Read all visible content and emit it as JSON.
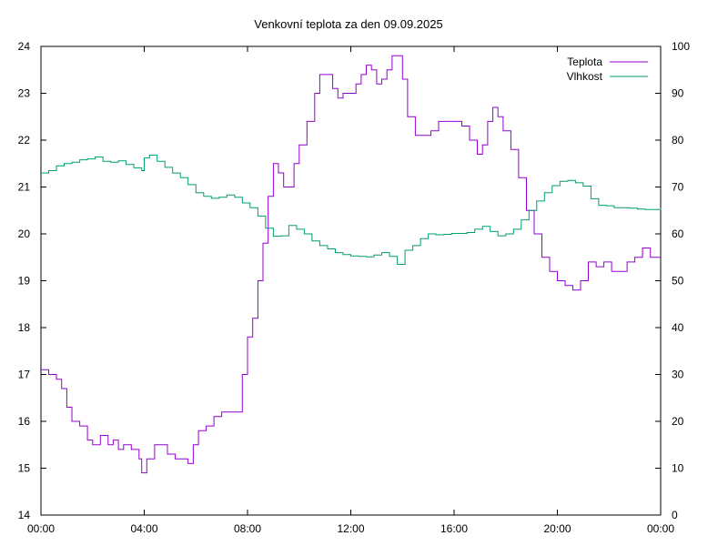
{
  "chart_data": {
    "type": "line",
    "title": "Venkovní teplota za den 09.09.2025",
    "xlabel": "",
    "ylabel": "",
    "y2label": "",
    "x_ticks": [
      "00:00",
      "04:00",
      "08:00",
      "12:00",
      "16:00",
      "20:00",
      "00:00"
    ],
    "xlim": [
      0,
      24
    ],
    "ylim": [
      14,
      24
    ],
    "y_ticks": [
      14,
      15,
      16,
      17,
      18,
      19,
      20,
      21,
      22,
      23,
      24
    ],
    "y2lim": [
      0,
      100
    ],
    "y2_ticks": [
      0,
      10,
      20,
      30,
      40,
      50,
      60,
      70,
      80,
      90,
      100
    ],
    "grid": false,
    "legend_position": "top-right",
    "series": [
      {
        "name": "Teplota",
        "axis": "left",
        "color": "#9400d3",
        "points": [
          [
            0,
            17.1
          ],
          [
            0.3,
            17.0
          ],
          [
            0.6,
            16.9
          ],
          [
            0.8,
            16.7
          ],
          [
            1.0,
            16.3
          ],
          [
            1.2,
            16.0
          ],
          [
            1.5,
            15.9
          ],
          [
            1.8,
            15.6
          ],
          [
            2.0,
            15.5
          ],
          [
            2.3,
            15.7
          ],
          [
            2.6,
            15.5
          ],
          [
            2.8,
            15.6
          ],
          [
            3.0,
            15.4
          ],
          [
            3.2,
            15.5
          ],
          [
            3.5,
            15.4
          ],
          [
            3.8,
            15.2
          ],
          [
            3.9,
            14.9
          ],
          [
            4.1,
            15.2
          ],
          [
            4.4,
            15.5
          ],
          [
            4.6,
            15.5
          ],
          [
            4.9,
            15.3
          ],
          [
            5.2,
            15.2
          ],
          [
            5.5,
            15.2
          ],
          [
            5.7,
            15.1
          ],
          [
            5.9,
            15.5
          ],
          [
            6.1,
            15.8
          ],
          [
            6.4,
            15.9
          ],
          [
            6.7,
            16.1
          ],
          [
            7.0,
            16.2
          ],
          [
            7.3,
            16.2
          ],
          [
            7.6,
            16.2
          ],
          [
            7.8,
            17.0
          ],
          [
            8.0,
            17.8
          ],
          [
            8.2,
            18.2
          ],
          [
            8.4,
            19.0
          ],
          [
            8.6,
            19.8
          ],
          [
            8.8,
            20.8
          ],
          [
            9.0,
            21.5
          ],
          [
            9.2,
            21.3
          ],
          [
            9.4,
            21.0
          ],
          [
            9.6,
            21.0
          ],
          [
            9.8,
            21.5
          ],
          [
            10.0,
            21.9
          ],
          [
            10.3,
            22.4
          ],
          [
            10.6,
            23.0
          ],
          [
            10.8,
            23.4
          ],
          [
            11.1,
            23.4
          ],
          [
            11.3,
            23.1
          ],
          [
            11.5,
            22.9
          ],
          [
            11.7,
            23.0
          ],
          [
            12.0,
            23.0
          ],
          [
            12.2,
            23.2
          ],
          [
            12.4,
            23.4
          ],
          [
            12.6,
            23.6
          ],
          [
            12.8,
            23.5
          ],
          [
            13.0,
            23.2
          ],
          [
            13.2,
            23.3
          ],
          [
            13.4,
            23.5
          ],
          [
            13.6,
            23.8
          ],
          [
            13.8,
            23.8
          ],
          [
            14.0,
            23.3
          ],
          [
            14.2,
            22.5
          ],
          [
            14.5,
            22.1
          ],
          [
            14.8,
            22.1
          ],
          [
            15.1,
            22.2
          ],
          [
            15.4,
            22.4
          ],
          [
            15.7,
            22.4
          ],
          [
            16.0,
            22.4
          ],
          [
            16.3,
            22.3
          ],
          [
            16.6,
            22.0
          ],
          [
            16.9,
            21.7
          ],
          [
            17.1,
            21.9
          ],
          [
            17.3,
            22.4
          ],
          [
            17.5,
            22.7
          ],
          [
            17.7,
            22.5
          ],
          [
            17.9,
            22.2
          ],
          [
            18.2,
            21.8
          ],
          [
            18.5,
            21.2
          ],
          [
            18.8,
            20.5
          ],
          [
            19.1,
            20.0
          ],
          [
            19.4,
            19.5
          ],
          [
            19.7,
            19.2
          ],
          [
            20.0,
            19.0
          ],
          [
            20.3,
            18.9
          ],
          [
            20.6,
            18.8
          ],
          [
            20.9,
            19.0
          ],
          [
            21.2,
            19.4
          ],
          [
            21.5,
            19.3
          ],
          [
            21.8,
            19.4
          ],
          [
            22.1,
            19.2
          ],
          [
            22.4,
            19.2
          ],
          [
            22.7,
            19.4
          ],
          [
            23.0,
            19.5
          ],
          [
            23.3,
            19.7
          ],
          [
            23.6,
            19.5
          ],
          [
            24.0,
            19.5
          ]
        ]
      },
      {
        "name": "Vlhkost",
        "axis": "right",
        "color": "#009e73",
        "points": [
          [
            0,
            73
          ],
          [
            0.3,
            73.5
          ],
          [
            0.6,
            74.5
          ],
          [
            0.9,
            75
          ],
          [
            1.2,
            75.3
          ],
          [
            1.5,
            75.8
          ],
          [
            1.8,
            76
          ],
          [
            2.1,
            76.4
          ],
          [
            2.4,
            75.5
          ],
          [
            2.7,
            75.3
          ],
          [
            3.0,
            75.6
          ],
          [
            3.3,
            74.8
          ],
          [
            3.6,
            74.1
          ],
          [
            3.9,
            73.5
          ],
          [
            4.0,
            76.2
          ],
          [
            4.2,
            76.8
          ],
          [
            4.5,
            75.5
          ],
          [
            4.8,
            74.2
          ],
          [
            5.1,
            73
          ],
          [
            5.4,
            72
          ],
          [
            5.7,
            70.5
          ],
          [
            6.0,
            68.8
          ],
          [
            6.3,
            68
          ],
          [
            6.6,
            67.6
          ],
          [
            6.9,
            67.8
          ],
          [
            7.2,
            68.3
          ],
          [
            7.5,
            67.8
          ],
          [
            7.8,
            66.6
          ],
          [
            8.1,
            65.6
          ],
          [
            8.4,
            63.8
          ],
          [
            8.7,
            61.2
          ],
          [
            9.0,
            59.5
          ],
          [
            9.3,
            59.6
          ],
          [
            9.6,
            61.8
          ],
          [
            9.9,
            61
          ],
          [
            10.2,
            60
          ],
          [
            10.5,
            58.5
          ],
          [
            10.8,
            57.5
          ],
          [
            11.1,
            56.8
          ],
          [
            11.4,
            56
          ],
          [
            11.7,
            55.6
          ],
          [
            12.0,
            55.3
          ],
          [
            12.3,
            55.2
          ],
          [
            12.6,
            55.1
          ],
          [
            12.9,
            55.5
          ],
          [
            13.2,
            56
          ],
          [
            13.5,
            55.2
          ],
          [
            13.8,
            53.5
          ],
          [
            14.1,
            56.5
          ],
          [
            14.4,
            57.5
          ],
          [
            14.7,
            59
          ],
          [
            15.0,
            60
          ],
          [
            15.3,
            59.8
          ],
          [
            15.6,
            59.9
          ],
          [
            15.9,
            60.1
          ],
          [
            16.2,
            60.1
          ],
          [
            16.5,
            60.3
          ],
          [
            16.8,
            61
          ],
          [
            17.1,
            61.6
          ],
          [
            17.4,
            60.5
          ],
          [
            17.7,
            59.6
          ],
          [
            18.0,
            60
          ],
          [
            18.3,
            61
          ],
          [
            18.6,
            63
          ],
          [
            18.9,
            65
          ],
          [
            19.2,
            67
          ],
          [
            19.5,
            68.8
          ],
          [
            19.8,
            70.3
          ],
          [
            20.1,
            71.2
          ],
          [
            20.4,
            71.4
          ],
          [
            20.7,
            70.9
          ],
          [
            21.0,
            70.2
          ],
          [
            21.3,
            67.5
          ],
          [
            21.6,
            66.1
          ],
          [
            21.9,
            66
          ],
          [
            22.2,
            65.6
          ],
          [
            22.5,
            65.6
          ],
          [
            22.8,
            65.5
          ],
          [
            23.1,
            65.3
          ],
          [
            23.4,
            65.2
          ],
          [
            23.7,
            65.2
          ],
          [
            24.0,
            65.5
          ]
        ]
      }
    ]
  }
}
